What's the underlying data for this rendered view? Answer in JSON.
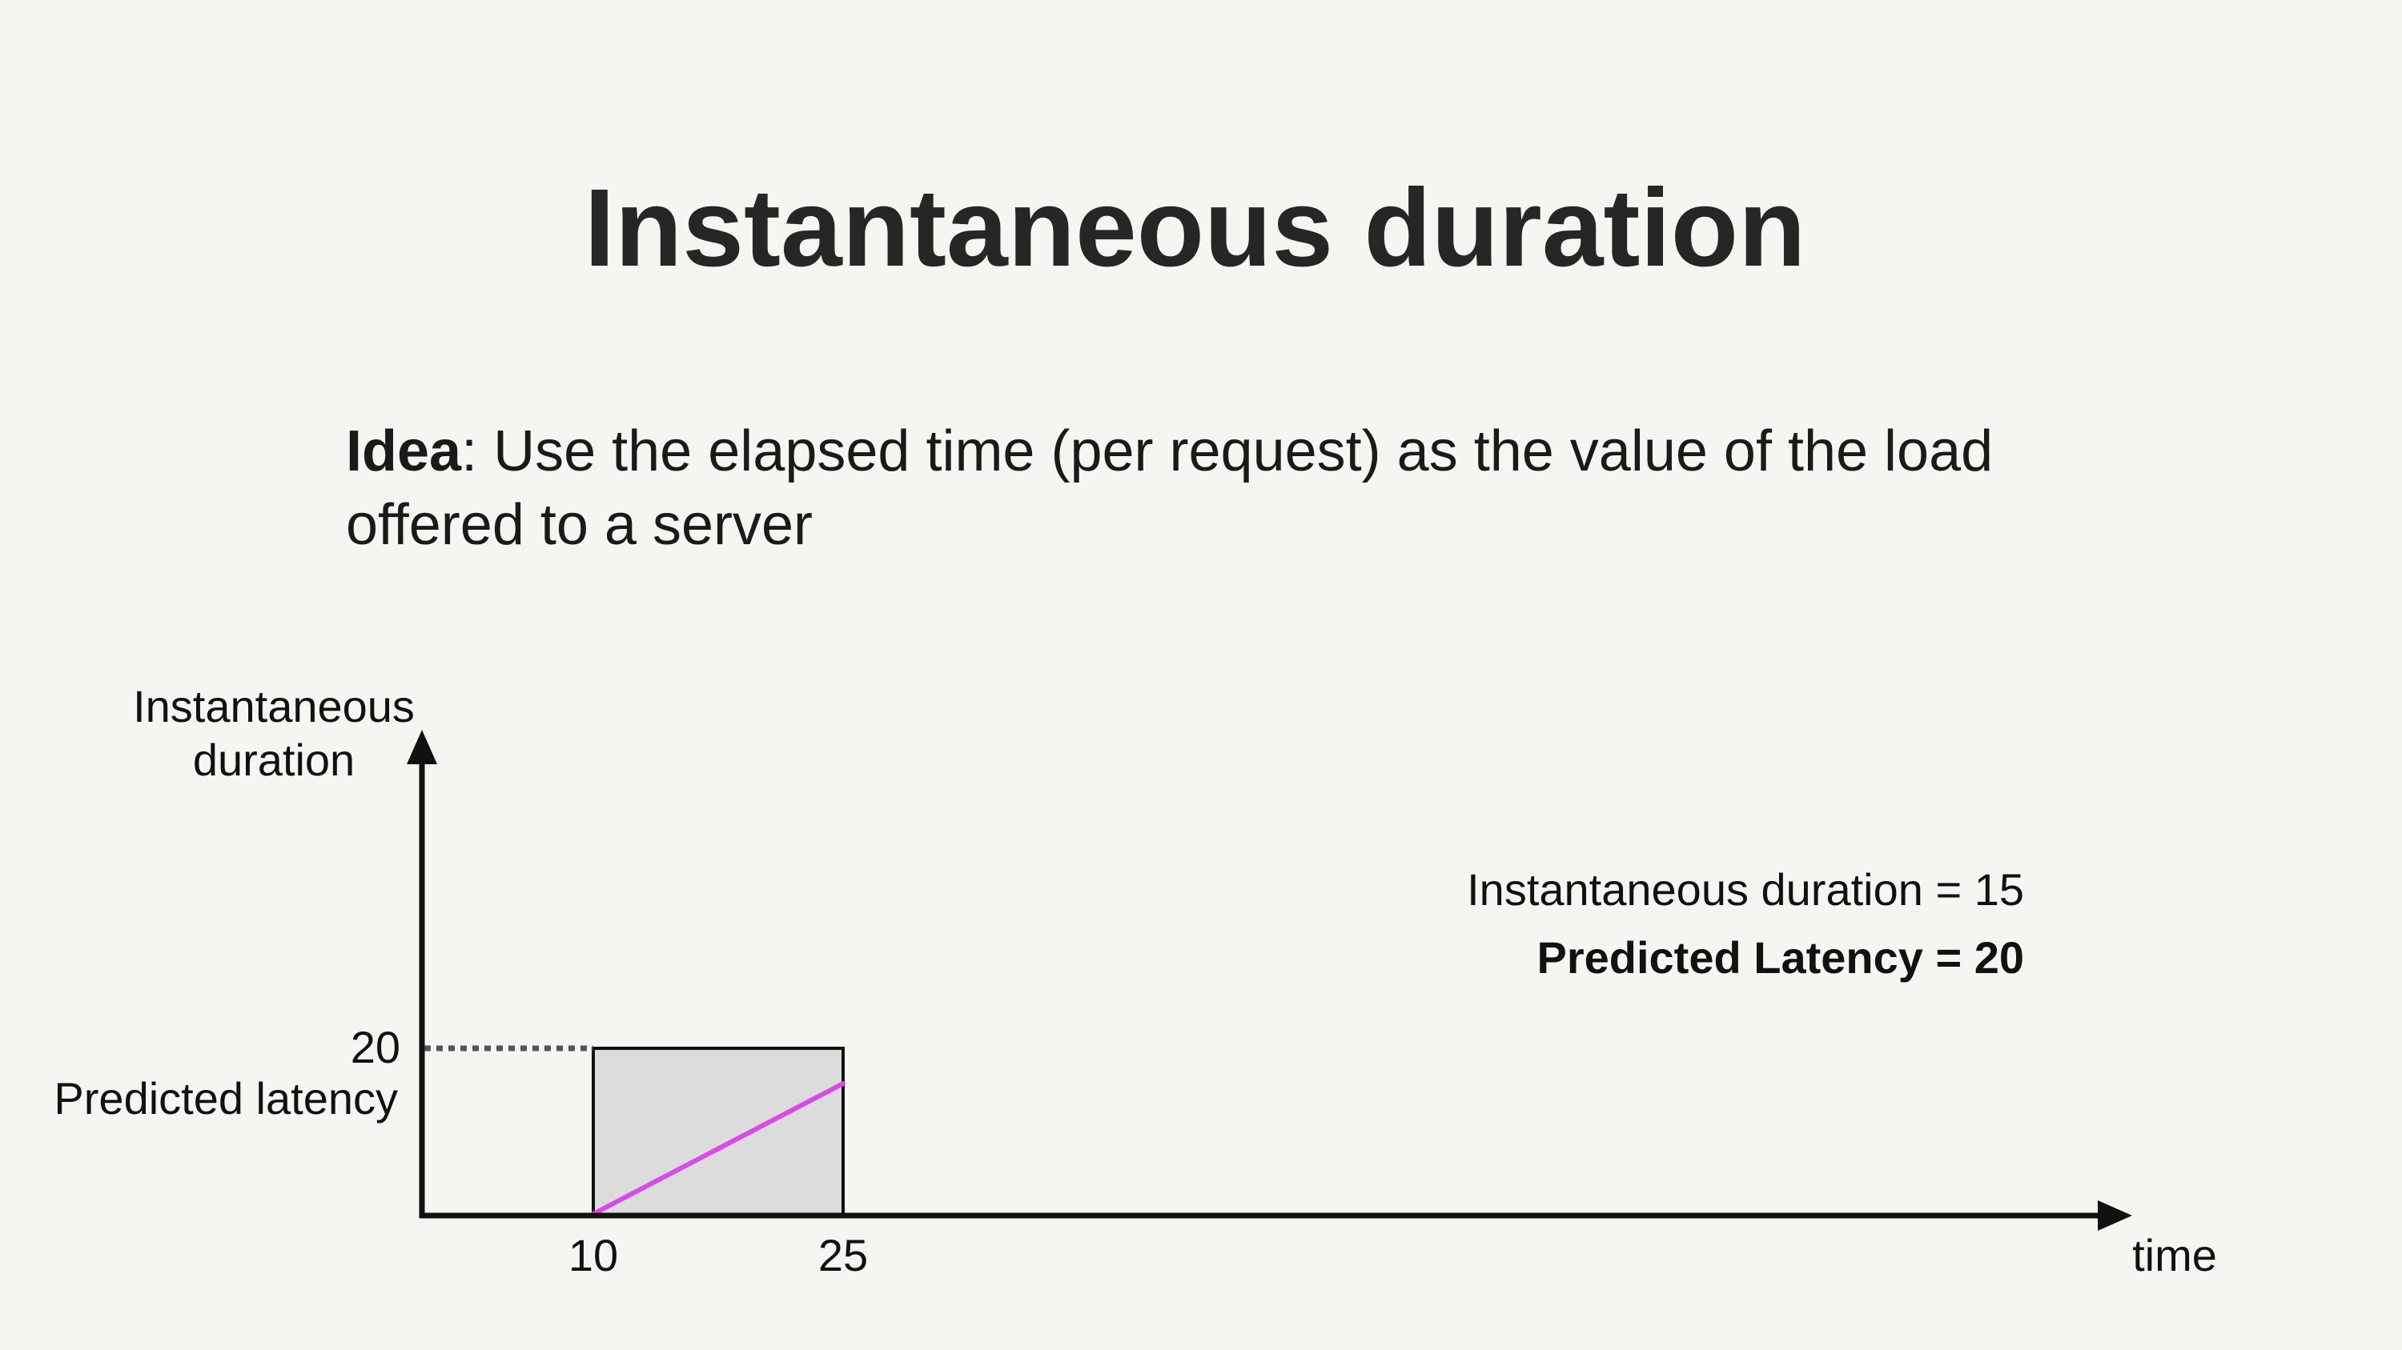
{
  "slide": {
    "title": "Instantaneous duration",
    "idea_label": "Idea",
    "idea_separator": ": ",
    "idea_body": "Use the elapsed time (per request) as the value of the load offered to a server"
  },
  "diagram": {
    "y_axis_label_line1": "Instantaneous",
    "y_axis_label_line2": "duration",
    "x_axis_label": "time",
    "y_marker_value": "20",
    "y_marker_label": "Predicted latency",
    "x_tick_start": "10",
    "x_tick_end": "25",
    "annotation_instantaneous": "Instantaneous duration = 15",
    "annotation_predicted": "Predicted Latency = 20",
    "box_fill_color": "#dcdcdc",
    "duration_line_color": "#d84bea",
    "request_interval": {
      "start": 10,
      "end": 25,
      "predicted_latency": 20,
      "instantaneous_duration": 15
    }
  }
}
